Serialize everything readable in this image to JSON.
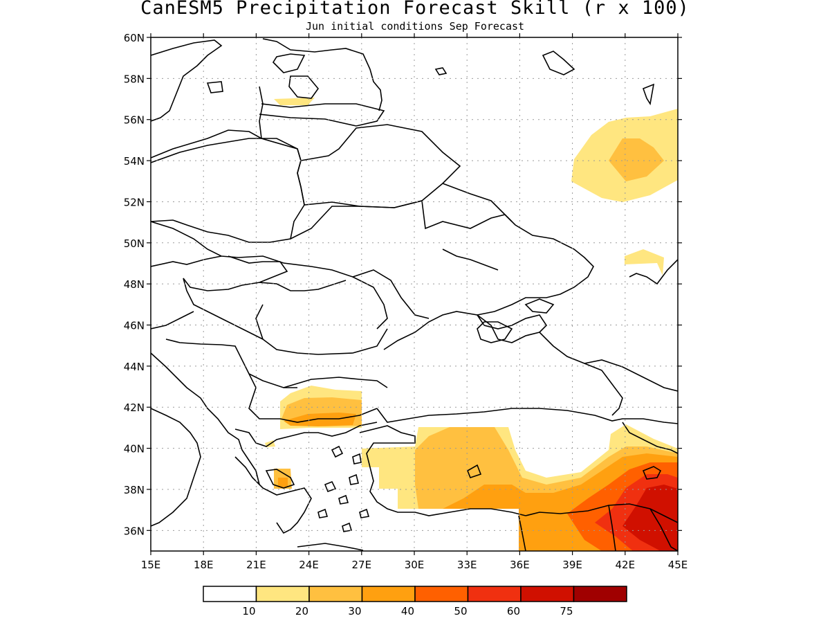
{
  "title": "CanESM5 Precipitation Forecast Skill (r x 100)",
  "subtitle": "Jun initial conditions  Sep Forecast",
  "map": {
    "lon_range": [
      15,
      45
    ],
    "lat_range": [
      35,
      60
    ],
    "lon_ticks": [
      "15E",
      "18E",
      "21E",
      "24E",
      "27E",
      "30E",
      "33E",
      "36E",
      "39E",
      "42E",
      "45E"
    ],
    "lat_ticks": [
      "60N",
      "58N",
      "56N",
      "54N",
      "52N",
      "50N",
      "48N",
      "46N",
      "44N",
      "42N",
      "40N",
      "38N",
      "36N"
    ],
    "grid": true,
    "region": "Eastern Europe, Balkans, Black Sea, Turkey, Caucasus"
  },
  "colorbar": {
    "labels": [
      "10",
      "20",
      "30",
      "40",
      "50",
      "60",
      "75"
    ],
    "colors": [
      "#ffffff",
      "#ffe680",
      "#ffc040",
      "#ffa010",
      "#ff6000",
      "#f03010",
      "#d01000",
      "#a00000"
    ]
  },
  "skill_regions": [
    {
      "area": "Baltic coast near 56.9N 23.5E",
      "level": "10-20",
      "color": "#ffe680"
    },
    {
      "area": "Western Russia around 54N 40-45E",
      "level": "10-30",
      "color": "#ffe680"
    },
    {
      "area": "Volga region near 49N 42E",
      "level": "10-20",
      "color": "#ffe680"
    },
    {
      "area": "Bulgaria / northern Greece 41-43N 22-27E",
      "level": "10-40",
      "color": "#ffc040"
    },
    {
      "area": "Western Greece near 38.5N 22E",
      "level": "20-30",
      "color": "#ffc040"
    },
    {
      "area": "Anatolia 36.5-41N 27-45E",
      "level": "10-75",
      "color": "#ffa010"
    },
    {
      "area": "Eastern Turkey / northern Iraq 36-39N 41-45E",
      "level": "50-75",
      "color": "#d01000"
    }
  ]
}
